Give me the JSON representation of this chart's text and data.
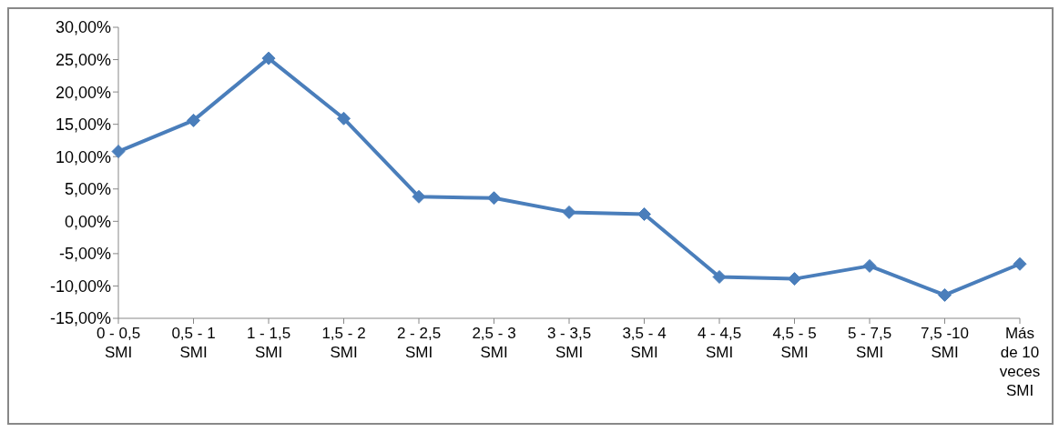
{
  "chart_data": {
    "type": "line",
    "categories": [
      "0 - 0,5\nSMI",
      "0,5 - 1\nSMI",
      "1 - 1,5\nSMI",
      "1,5 - 2\nSMI",
      "2 - 2,5\nSMI",
      "2,5 - 3\nSMI",
      "3 - 3,5\nSMI",
      "3,5 - 4\nSMI",
      "4 - 4,5\nSMI",
      "4,5 - 5\nSMI",
      "5 - 7,5\nSMI",
      "7,5 -10\nSMI",
      "Más\nde 10\nveces\nSMI"
    ],
    "series": [
      {
        "color": "#4a7ebb",
        "values": [
          10.8,
          15.6,
          25.2,
          15.9,
          3.8,
          3.6,
          1.4,
          1.1,
          -8.6,
          -8.9,
          -6.9,
          -11.4,
          -6.6
        ]
      }
    ],
    "ylim": [
      -15,
      30
    ],
    "yticks": [
      {
        "value": -15,
        "label": "-15,00%"
      },
      {
        "value": -10,
        "label": "-10,00%"
      },
      {
        "value": -5,
        "label": "-5,00%"
      },
      {
        "value": 0,
        "label": "0,00%"
      },
      {
        "value": 5,
        "label": "5,00%"
      },
      {
        "value": 10,
        "label": "10,00%"
      },
      {
        "value": 15,
        "label": "15,00%"
      },
      {
        "value": 20,
        "label": "20,00%"
      },
      {
        "value": 25,
        "label": "25,00%"
      },
      {
        "value": 30,
        "label": "30,00%"
      }
    ],
    "grid": false,
    "legend": false,
    "marker": "diamond",
    "line_style": "solid"
  }
}
